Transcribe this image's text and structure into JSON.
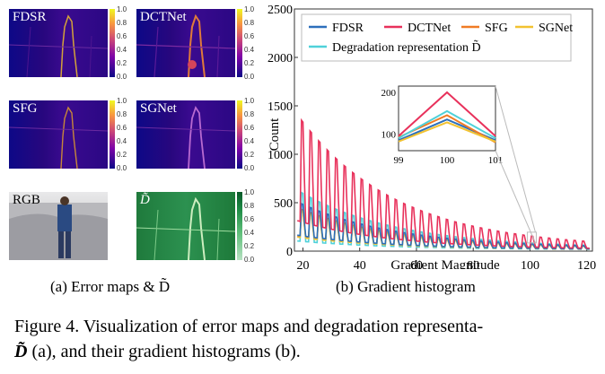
{
  "left_panel": {
    "maps": [
      {
        "label": "FDSR"
      },
      {
        "label": "DCTNet"
      },
      {
        "label": "SFG"
      },
      {
        "label": "SGNet"
      },
      {
        "label": "RGB"
      },
      {
        "label": "D̃"
      }
    ],
    "colorbar_ticks": [
      "1.0",
      "0.8",
      "0.6",
      "0.4",
      "0.2",
      "0.0"
    ],
    "caption": "(a) Error maps & D̃"
  },
  "right_panel": {
    "caption": "(b) Gradient histogram"
  },
  "chart_data": {
    "type": "line",
    "xlabel": "Gradient Magnitude",
    "ylabel": "Count",
    "xlim": [
      17,
      122
    ],
    "ylim": [
      0,
      2500
    ],
    "xticks": [
      20,
      40,
      60,
      80,
      100,
      120
    ],
    "yticks": [
      0,
      500,
      1000,
      1500,
      2000,
      2500
    ],
    "ytick_labels": [
      "0",
      "500",
      "1000",
      "1500",
      "2000",
      "2500"
    ],
    "legend_position": "top-right",
    "series": [
      {
        "name": "FDSR",
        "color": "#2c6fbb",
        "peak_start": 480,
        "base_start": 150
      },
      {
        "name": "DCTNet",
        "color": "#e8315b",
        "peak_start": 1380,
        "base_start": 300
      },
      {
        "name": "SFG",
        "color": "#f07b24",
        "peak_start": 420,
        "base_start": 140
      },
      {
        "name": "SGNet",
        "color": "#f2c230",
        "peak_start": 400,
        "base_start": 130
      },
      {
        "name": "Degradation representation D̃",
        "color": "#4fd1d9",
        "peak_start": 600,
        "base_start": 90
      }
    ],
    "inset": {
      "x": [
        99,
        100,
        101
      ],
      "yticks": [
        100,
        200
      ],
      "xlim": [
        99,
        101
      ],
      "ylim": [
        60,
        215
      ],
      "series": [
        {
          "name": "FDSR",
          "values": [
            85,
            135,
            85
          ]
        },
        {
          "name": "DCTNet",
          "values": [
            95,
            200,
            95
          ]
        },
        {
          "name": "SFG",
          "values": [
            92,
            145,
            80
          ]
        },
        {
          "name": "SGNet",
          "values": [
            82,
            128,
            82
          ]
        },
        {
          "name": "Degradation representation D̃",
          "values": [
            90,
            155,
            90
          ]
        }
      ]
    }
  },
  "figure_caption": {
    "line1": "Figure 4. Visualization of error maps and degradation representa-",
    "line2_symbol": "D̃",
    "line2_rest": " (a), and their gradient histograms (b)."
  }
}
